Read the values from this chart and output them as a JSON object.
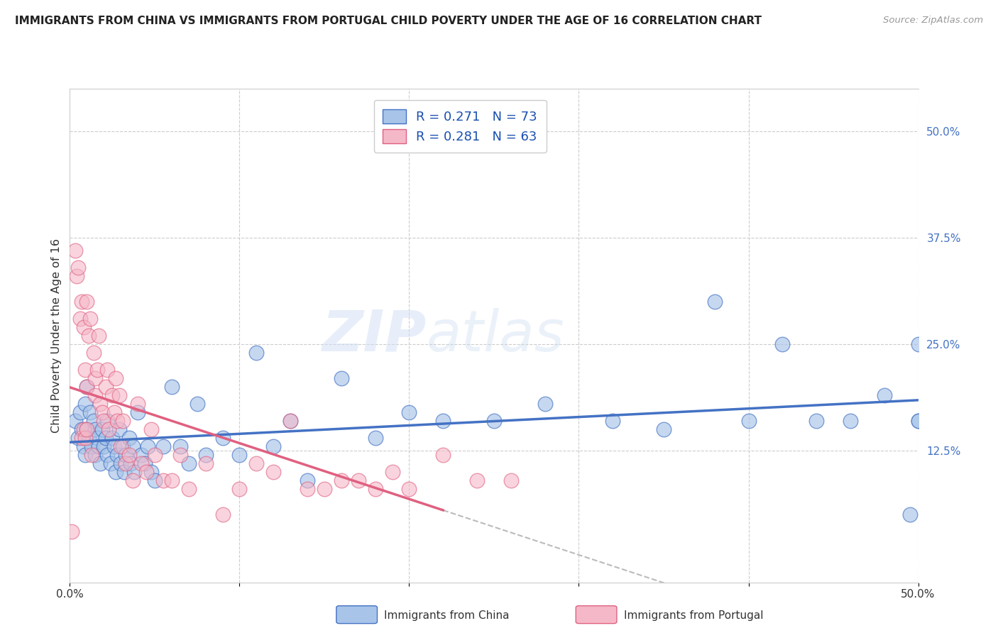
{
  "title": "IMMIGRANTS FROM CHINA VS IMMIGRANTS FROM PORTUGAL CHILD POVERTY UNDER THE AGE OF 16 CORRELATION CHART",
  "source": "Source: ZipAtlas.com",
  "ylabel": "Child Poverty Under the Age of 16",
  "xlim": [
    0,
    0.5
  ],
  "ylim": [
    -0.03,
    0.55
  ],
  "right_yticks": [
    0.0,
    0.125,
    0.25,
    0.375,
    0.5
  ],
  "right_yticklabels": [
    "",
    "12.5%",
    "25.0%",
    "37.5%",
    "50.0%"
  ],
  "china_color": "#a8c4e8",
  "portugal_color": "#f5b8c8",
  "china_R": 0.271,
  "china_N": 73,
  "portugal_R": 0.281,
  "portugal_N": 63,
  "legend_label_china": "Immigrants from China",
  "legend_label_portugal": "Immigrants from Portugal",
  "watermark_zip": "ZIP",
  "watermark_atlas": "atlas",
  "background_color": "#ffffff",
  "grid_color": "#cccccc",
  "china_line_color": "#4472c4",
  "portugal_line_color": "#e06080",
  "dashed_line_color": "#bbbbbb",
  "china_scatter_x": [
    0.003,
    0.005,
    0.006,
    0.007,
    0.008,
    0.009,
    0.009,
    0.01,
    0.01,
    0.011,
    0.012,
    0.013,
    0.014,
    0.015,
    0.015,
    0.016,
    0.017,
    0.018,
    0.019,
    0.02,
    0.021,
    0.022,
    0.022,
    0.024,
    0.025,
    0.026,
    0.027,
    0.028,
    0.029,
    0.03,
    0.031,
    0.032,
    0.033,
    0.035,
    0.036,
    0.037,
    0.038,
    0.04,
    0.042,
    0.044,
    0.046,
    0.048,
    0.05,
    0.055,
    0.06,
    0.065,
    0.07,
    0.075,
    0.08,
    0.09,
    0.1,
    0.11,
    0.12,
    0.13,
    0.14,
    0.16,
    0.18,
    0.2,
    0.22,
    0.25,
    0.28,
    0.32,
    0.35,
    0.38,
    0.4,
    0.42,
    0.44,
    0.46,
    0.48,
    0.495,
    0.5,
    0.5,
    0.5
  ],
  "china_scatter_y": [
    0.16,
    0.14,
    0.17,
    0.15,
    0.13,
    0.18,
    0.12,
    0.15,
    0.2,
    0.14,
    0.17,
    0.13,
    0.16,
    0.12,
    0.15,
    0.14,
    0.13,
    0.11,
    0.15,
    0.13,
    0.14,
    0.12,
    0.16,
    0.11,
    0.14,
    0.13,
    0.1,
    0.12,
    0.15,
    0.11,
    0.13,
    0.1,
    0.12,
    0.14,
    0.11,
    0.13,
    0.1,
    0.17,
    0.12,
    0.11,
    0.13,
    0.1,
    0.09,
    0.13,
    0.2,
    0.13,
    0.11,
    0.18,
    0.12,
    0.14,
    0.12,
    0.24,
    0.13,
    0.16,
    0.09,
    0.21,
    0.14,
    0.17,
    0.16,
    0.16,
    0.18,
    0.16,
    0.15,
    0.3,
    0.16,
    0.25,
    0.16,
    0.16,
    0.19,
    0.05,
    0.16,
    0.16,
    0.25
  ],
  "portugal_scatter_x": [
    0.001,
    0.003,
    0.004,
    0.005,
    0.006,
    0.007,
    0.007,
    0.008,
    0.008,
    0.009,
    0.009,
    0.01,
    0.01,
    0.01,
    0.011,
    0.012,
    0.013,
    0.014,
    0.015,
    0.015,
    0.016,
    0.017,
    0.018,
    0.019,
    0.02,
    0.021,
    0.022,
    0.023,
    0.025,
    0.026,
    0.027,
    0.028,
    0.029,
    0.03,
    0.031,
    0.033,
    0.035,
    0.037,
    0.04,
    0.042,
    0.045,
    0.048,
    0.05,
    0.055,
    0.06,
    0.065,
    0.07,
    0.08,
    0.09,
    0.1,
    0.11,
    0.12,
    0.13,
    0.14,
    0.15,
    0.16,
    0.17,
    0.18,
    0.19,
    0.2,
    0.22,
    0.24,
    0.26
  ],
  "portugal_scatter_y": [
    0.03,
    0.36,
    0.33,
    0.34,
    0.28,
    0.3,
    0.14,
    0.15,
    0.27,
    0.22,
    0.14,
    0.3,
    0.2,
    0.15,
    0.26,
    0.28,
    0.12,
    0.24,
    0.21,
    0.19,
    0.22,
    0.26,
    0.18,
    0.17,
    0.16,
    0.2,
    0.22,
    0.15,
    0.19,
    0.17,
    0.21,
    0.16,
    0.19,
    0.13,
    0.16,
    0.11,
    0.12,
    0.09,
    0.18,
    0.11,
    0.1,
    0.15,
    0.12,
    0.09,
    0.09,
    0.12,
    0.08,
    0.11,
    0.05,
    0.08,
    0.11,
    0.1,
    0.16,
    0.08,
    0.08,
    0.09,
    0.09,
    0.08,
    0.1,
    0.08,
    0.12,
    0.09,
    0.09
  ]
}
